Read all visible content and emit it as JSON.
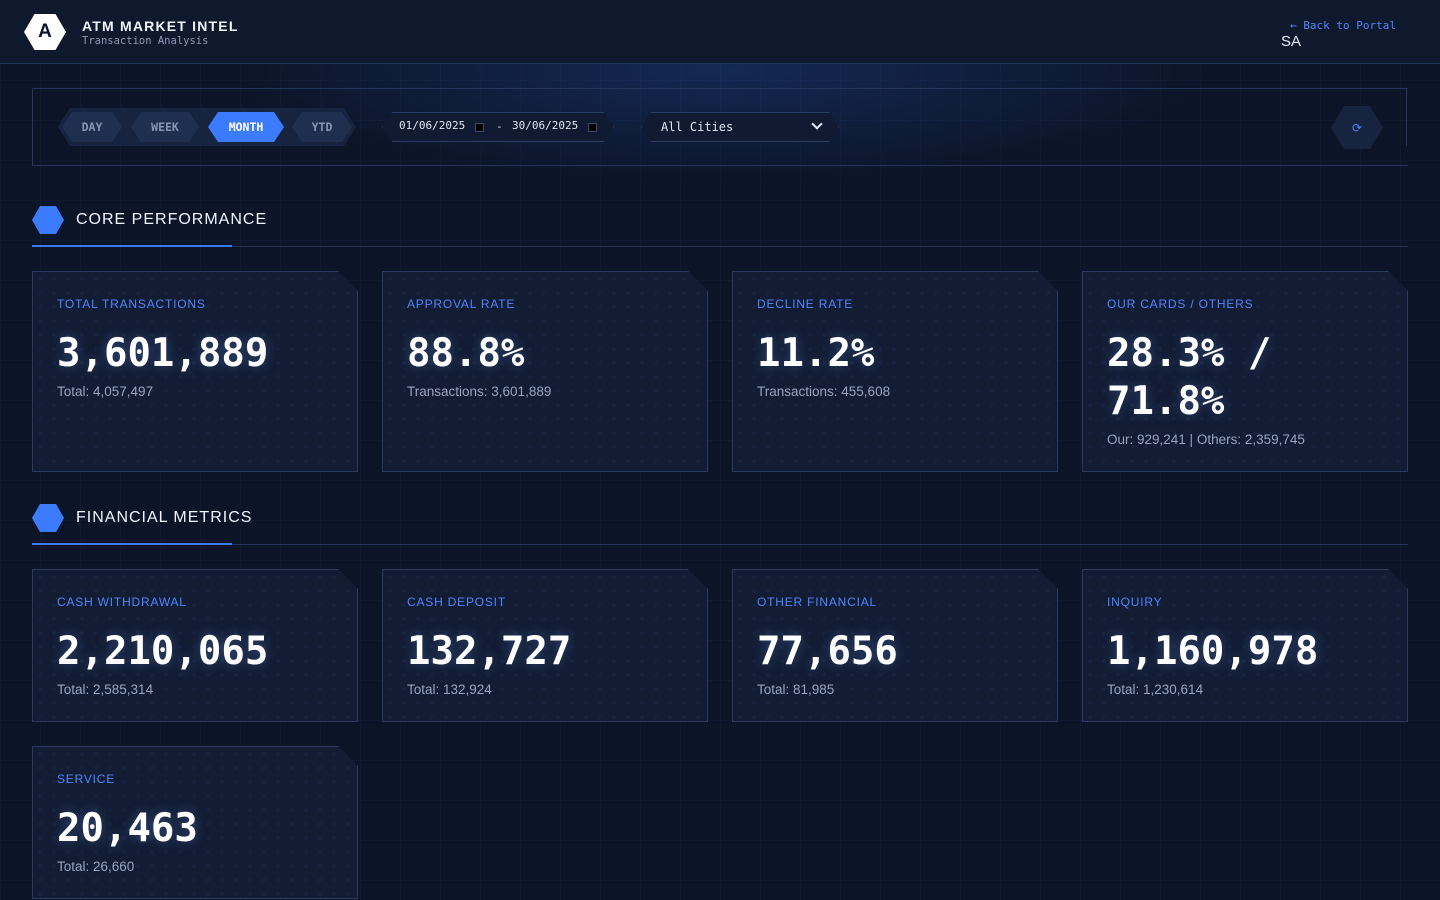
{
  "header": {
    "logo_letter": "A",
    "title": "ATM MARKET INTEL",
    "subtitle": "Transaction Analysis",
    "back_link": "← Back to Portal",
    "user_code": "SA"
  },
  "filters": {
    "periods": [
      "DAY",
      "WEEK",
      "MONTH",
      "YTD"
    ],
    "active_period": "MONTH",
    "date_from": "01/06/2025",
    "date_to": "30/06/2025",
    "date_separator": "-",
    "city": "All Cities",
    "refresh_icon": "⟳"
  },
  "core": {
    "title": "CORE PERFORMANCE",
    "cards": [
      {
        "label": "TOTAL TRANSACTIONS",
        "value": "3,601,889",
        "sub": "Total: 4,057,497"
      },
      {
        "label": "APPROVAL RATE",
        "value": "88.8%",
        "sub": "Transactions: 3,601,889"
      },
      {
        "label": "DECLINE RATE",
        "value": "11.2%",
        "sub": "Transactions: 455,608"
      },
      {
        "label": "OUR CARDS / OTHERS",
        "value": "28.3% / 71.8%",
        "sub": "Our: 929,241 | Others: 2,359,745"
      }
    ]
  },
  "financial": {
    "title": "FINANCIAL METRICS",
    "cards": [
      {
        "label": "CASH WITHDRAWAL",
        "value": "2,210,065",
        "sub": "Total: 2,585,314"
      },
      {
        "label": "CASH DEPOSIT",
        "value": "132,727",
        "sub": "Total: 132,924"
      },
      {
        "label": "OTHER FINANCIAL",
        "value": "77,656",
        "sub": "Total: 81,985"
      },
      {
        "label": "INQUIRY",
        "value": "1,160,978",
        "sub": "Total: 1,230,614"
      },
      {
        "label": "SERVICE",
        "value": "20,463",
        "sub": "Total: 26,660"
      }
    ]
  },
  "colors": {
    "accent": "#3b7cff",
    "background": "#0c1528",
    "card": "#121c33"
  }
}
